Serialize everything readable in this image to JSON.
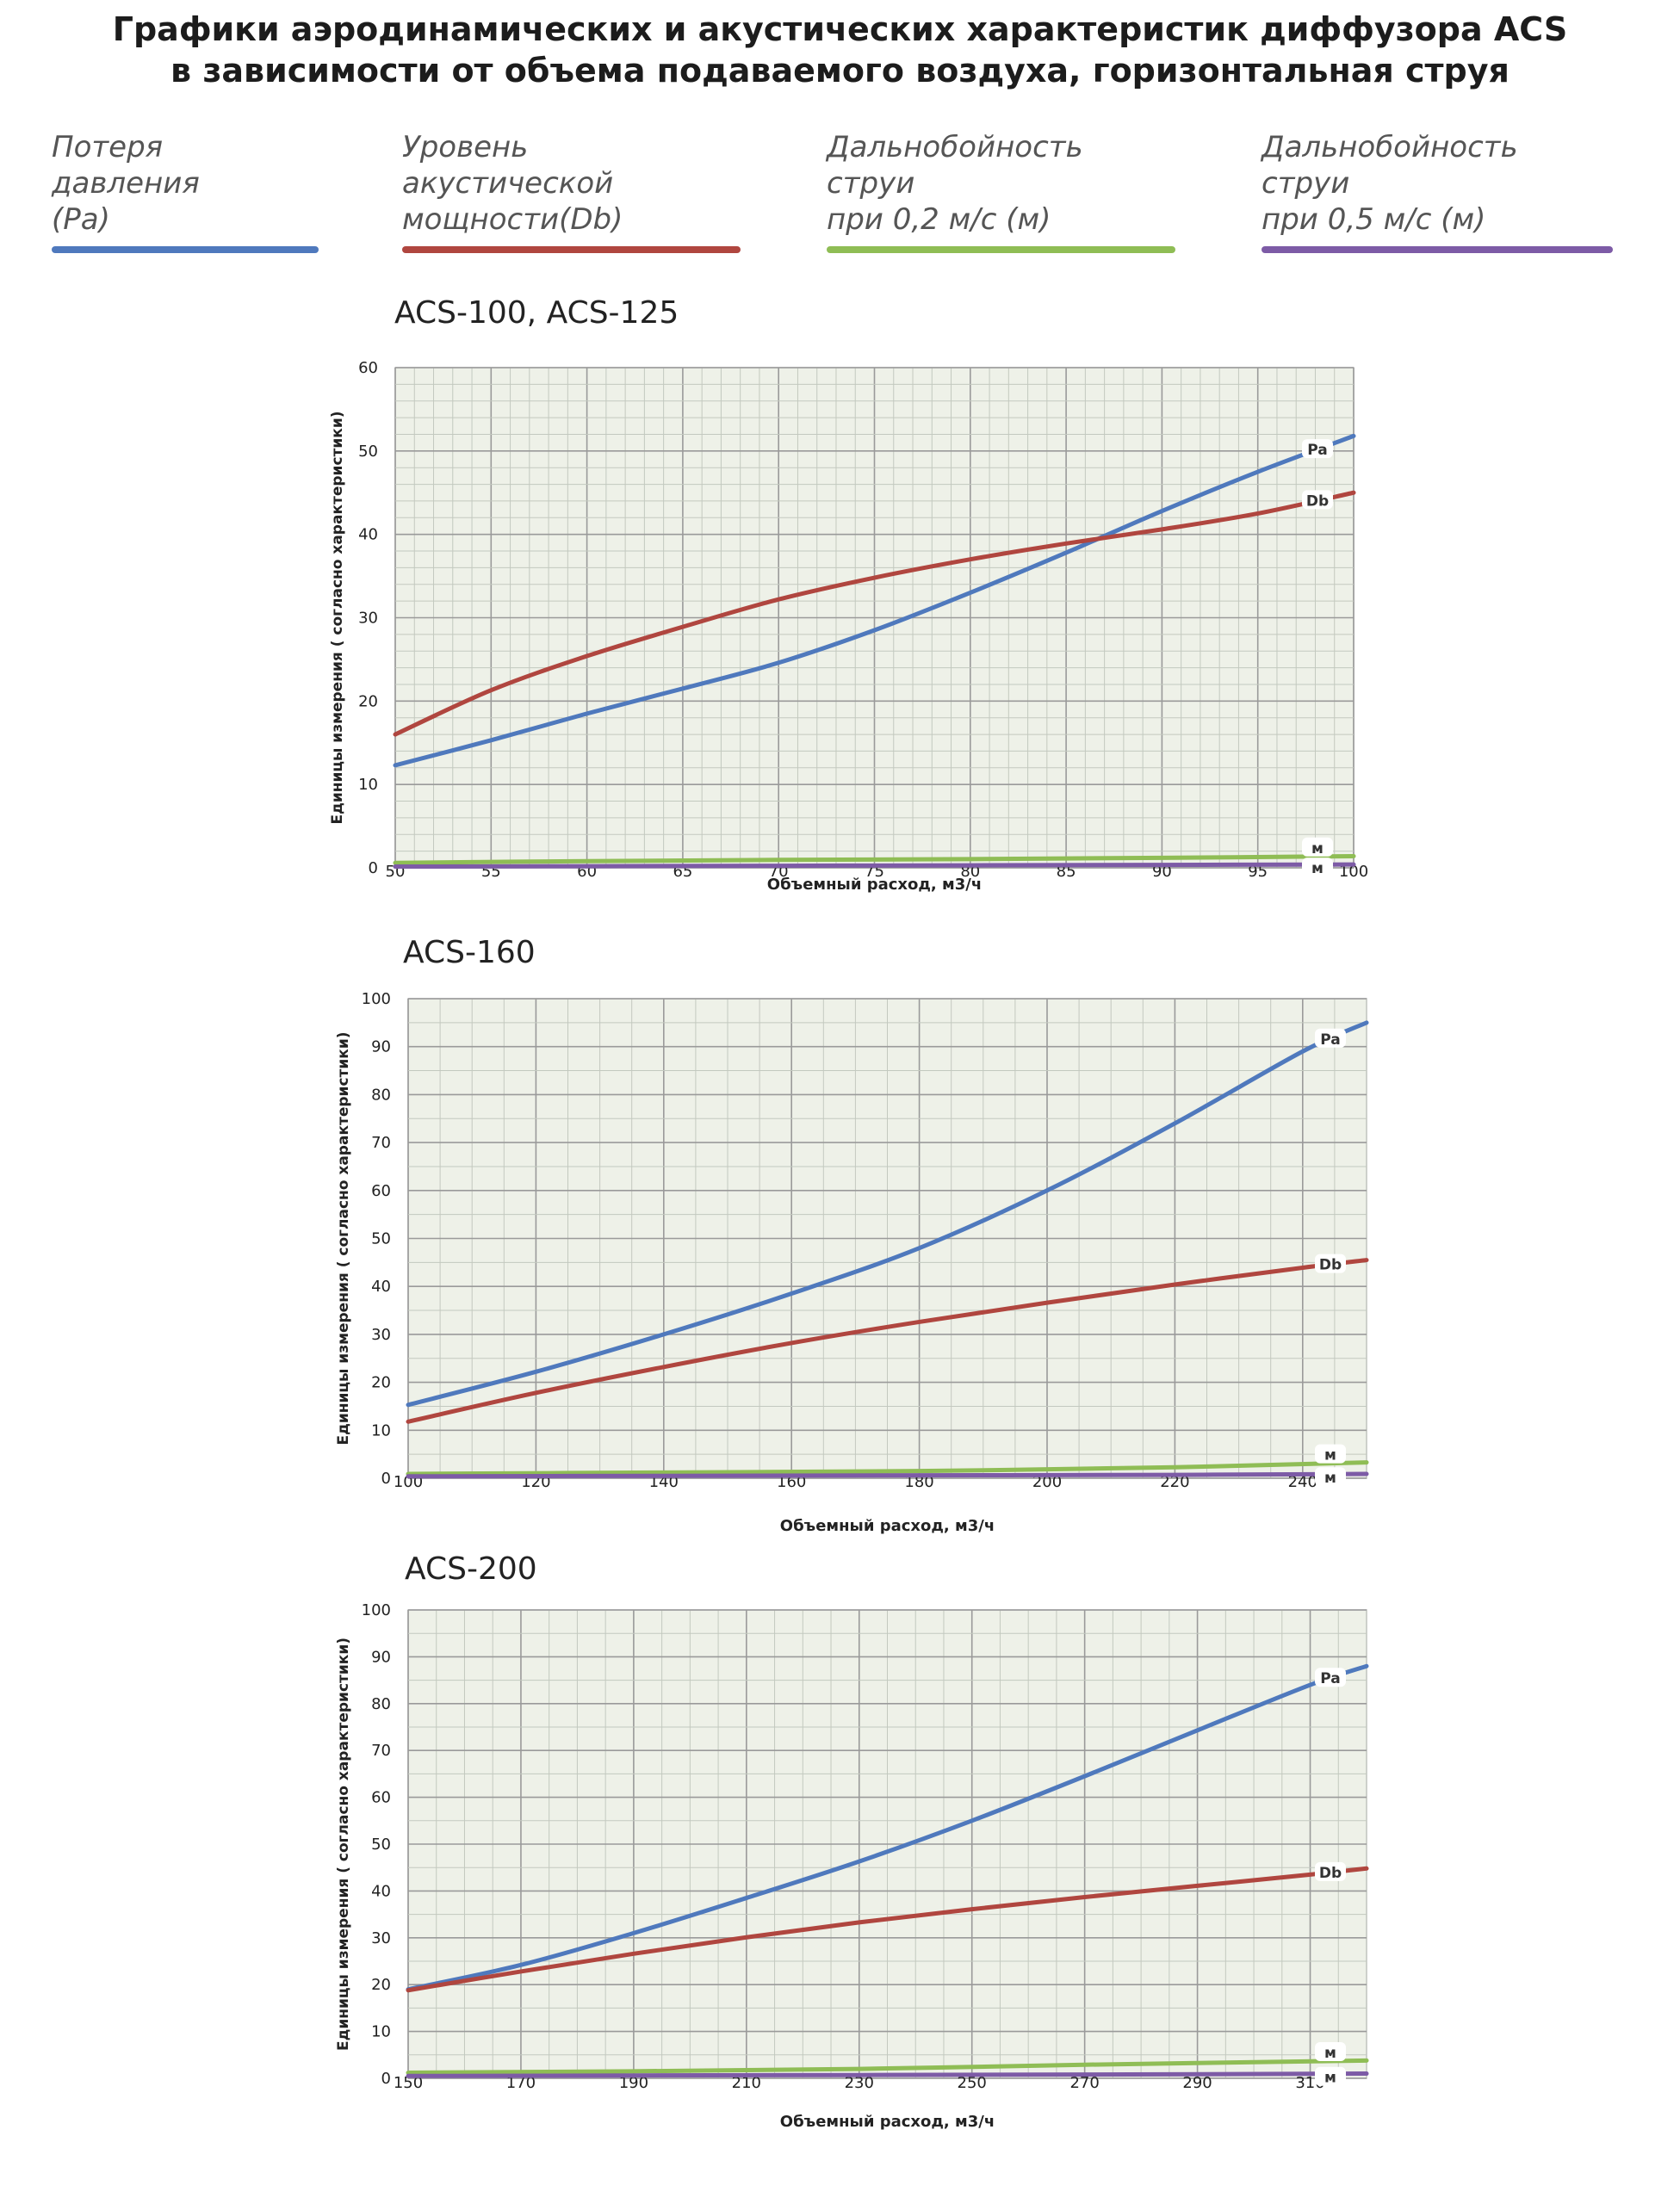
{
  "title_line1": "Графики аэродинамических и акустических характеристик диффузора ACS",
  "title_line2": "в зависимости от объема подаваемого воздуха, горизонтальная струя",
  "legend": [
    {
      "label": "Потеря давления\n(Pa)",
      "color": "#4f79bd"
    },
    {
      "label": "Уровень акустической\nмощности(Db)",
      "color": "#b0463f"
    },
    {
      "label": "Дальнобойность струи\nпри 0,2 м/с (м)",
      "color": "#8fbd55"
    },
    {
      "label": "Дальнобойность струи\nпри 0,5 м/с (м)",
      "color": "#7d5ba6"
    }
  ],
  "chart_data": [
    {
      "type": "line",
      "title": "ACS-100, ACS-125",
      "xlabel": "Объемный расход, м3/ч",
      "ylabel": "Единицы измерения ( согласно характеристики)",
      "xlim": [
        50,
        100
      ],
      "ylim": [
        0,
        60
      ],
      "xticks": [
        50,
        55,
        60,
        65,
        70,
        75,
        80,
        85,
        90,
        95,
        100
      ],
      "yticks": [
        0,
        10,
        20,
        30,
        40,
        50,
        60
      ],
      "grid": true,
      "series": [
        {
          "name": "Pa",
          "color": "#4f79bd",
          "x": [
            50,
            55,
            60,
            65,
            70,
            75,
            80,
            85,
            90,
            95,
            100
          ],
          "y": [
            12.3,
            15.3,
            18.5,
            21.5,
            24.6,
            28.5,
            33,
            37.8,
            42.8,
            47.5,
            51.8
          ]
        },
        {
          "name": "Db",
          "color": "#b0463f",
          "x": [
            50,
            55,
            60,
            65,
            70,
            75,
            80,
            85,
            90,
            95,
            100
          ],
          "y": [
            16,
            21.3,
            25.4,
            28.9,
            32.2,
            34.8,
            37,
            38.9,
            40.6,
            42.5,
            45
          ]
        },
        {
          "name": "м",
          "color": "#8fbd55",
          "x": [
            50,
            60,
            70,
            80,
            90,
            100
          ],
          "y": [
            0.6,
            0.8,
            0.95,
            1.05,
            1.2,
            1.4
          ]
        },
        {
          "name": "м",
          "color": "#7d5ba6",
          "x": [
            50,
            60,
            70,
            80,
            90,
            100
          ],
          "y": [
            0.15,
            0.2,
            0.25,
            0.3,
            0.35,
            0.4
          ]
        }
      ]
    },
    {
      "type": "line",
      "title": "ACS-160",
      "xlabel": "Объемный расход, м3/ч",
      "ylabel": "Единицы измерения ( согласно характеристики)",
      "xlim": [
        100,
        250
      ],
      "ylim": [
        0,
        100
      ],
      "xticks": [
        100,
        120,
        140,
        160,
        180,
        200,
        220,
        240
      ],
      "yticks": [
        0,
        10,
        20,
        30,
        40,
        50,
        60,
        70,
        80,
        90,
        100
      ],
      "grid": true,
      "series": [
        {
          "name": "Pa",
          "color": "#4f79bd",
          "x": [
            100,
            120,
            140,
            160,
            180,
            200,
            220,
            240,
            250
          ],
          "y": [
            15.3,
            22.2,
            30,
            38.5,
            48,
            60,
            74,
            89,
            95
          ]
        },
        {
          "name": "Db",
          "color": "#b0463f",
          "x": [
            100,
            120,
            140,
            160,
            180,
            200,
            220,
            240,
            250
          ],
          "y": [
            11.8,
            17.8,
            23.2,
            28.2,
            32.6,
            36.6,
            40.4,
            43.9,
            45.5
          ]
        },
        {
          "name": "м",
          "color": "#8fbd55",
          "x": [
            100,
            140,
            180,
            220,
            250
          ],
          "y": [
            0.9,
            1.2,
            1.5,
            2.3,
            3.3
          ]
        },
        {
          "name": "м",
          "color": "#7d5ba6",
          "x": [
            100,
            140,
            180,
            220,
            250
          ],
          "y": [
            0.4,
            0.5,
            0.6,
            0.7,
            0.9
          ]
        }
      ]
    },
    {
      "type": "line",
      "title": "ACS-200",
      "xlabel": "Объемный расход, м3/ч",
      "ylabel": "Единицы измерения ( согласно характеристики)",
      "xlim": [
        150,
        320
      ],
      "ylim": [
        0,
        100
      ],
      "xticks": [
        150,
        170,
        190,
        210,
        230,
        250,
        270,
        290,
        310
      ],
      "yticks": [
        0,
        10,
        20,
        30,
        40,
        50,
        60,
        70,
        80,
        90,
        100
      ],
      "grid": true,
      "series": [
        {
          "name": "Pa",
          "color": "#4f79bd",
          "x": [
            150,
            170,
            190,
            210,
            230,
            250,
            270,
            290,
            310,
            320
          ],
          "y": [
            19,
            24.2,
            31,
            38.5,
            46.3,
            55,
            64.5,
            74.3,
            84,
            88
          ]
        },
        {
          "name": "Db",
          "color": "#b0463f",
          "x": [
            150,
            170,
            190,
            210,
            230,
            250,
            270,
            290,
            310,
            320
          ],
          "y": [
            18.8,
            22.8,
            26.6,
            30.1,
            33.3,
            36.1,
            38.7,
            41.1,
            43.5,
            44.8
          ]
        },
        {
          "name": "м",
          "color": "#8fbd55",
          "x": [
            150,
            190,
            230,
            270,
            320
          ],
          "y": [
            1.2,
            1.5,
            2,
            2.9,
            3.8
          ]
        },
        {
          "name": "м",
          "color": "#7d5ba6",
          "x": [
            150,
            190,
            230,
            270,
            320
          ],
          "y": [
            0.5,
            0.6,
            0.7,
            0.8,
            1
          ]
        }
      ]
    }
  ]
}
